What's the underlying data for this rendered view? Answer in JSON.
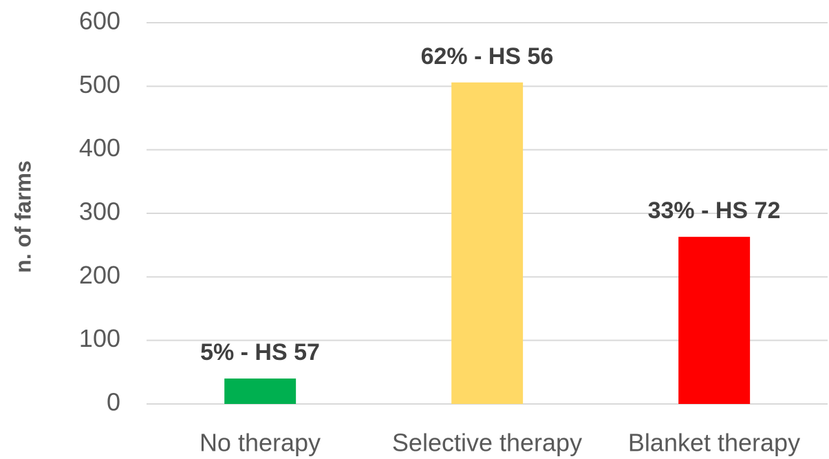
{
  "chart_data": {
    "type": "bar",
    "y_label": "n. of farms",
    "categories": [
      "No therapy",
      "Selective therapy",
      "Blanket therapy"
    ],
    "values": [
      40,
      506,
      263
    ],
    "annotations": [
      "5% - HS 57",
      "62% - HS 56",
      "33% - HS 72"
    ],
    "colors": [
      "#00b050",
      "#ffd966",
      "#ff0000"
    ],
    "ylim": [
      0,
      600
    ],
    "yticks": [
      0,
      100,
      200,
      300,
      400,
      500,
      600
    ],
    "grid": true
  }
}
